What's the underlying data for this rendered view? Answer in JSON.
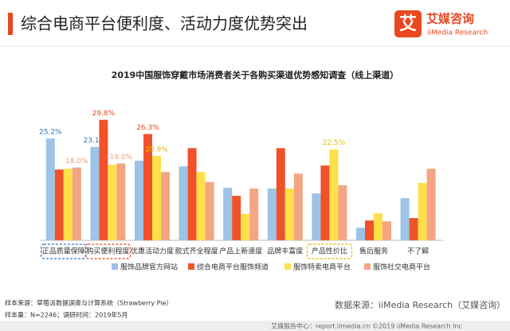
{
  "header": {
    "title": "综合电商平台便利度、活动力度优势突出",
    "logo_char": "艾",
    "logo_name": "艾媒咨询",
    "logo_sub": "iiMedia Research"
  },
  "chart_data": {
    "type": "bar",
    "title": "2019中国服饰穿戴市场消费者关于各购买渠道优势感知调查（线上渠道）",
    "categories": [
      "正品质量保障",
      "购买便利程度",
      "优惠活动力度",
      "款式齐全程度",
      "产品上新速度",
      "品牌丰富度",
      "产品性价比",
      "售后服务",
      "不了解"
    ],
    "series": [
      {
        "name": "服饰品牌官方网站",
        "color": "#9dc3e6",
        "values": [
          25.2,
          23.1,
          19.7,
          18.3,
          13.0,
          12.8,
          11.6,
          3.1,
          10.4
        ],
        "value_labels": [
          "25.2%",
          "23.1%",
          null,
          null,
          null,
          null,
          null,
          null,
          null
        ],
        "label_color": "#2e75b6"
      },
      {
        "name": "综合电商平台服饰频道",
        "color": "#f0532a",
        "values": [
          17.5,
          29.8,
          26.3,
          22.8,
          11.0,
          22.8,
          18.5,
          4.9,
          5.5
        ],
        "value_labels": [
          null,
          "29.8%",
          "26.3%",
          null,
          null,
          null,
          null,
          null,
          null
        ],
        "label_color": "#e8471f"
      },
      {
        "name": "服饰特卖电商平台",
        "color": "#ffe04b",
        "values": [
          17.7,
          18.7,
          20.9,
          16.9,
          6.5,
          12.8,
          22.5,
          6.7,
          14.2
        ],
        "value_labels": [
          null,
          null,
          "20.9%",
          null,
          null,
          null,
          "22.5%",
          null,
          null
        ],
        "label_color": "#e6b800"
      },
      {
        "name": "服饰社交电商平台",
        "color": "#f4a582",
        "values": [
          18.0,
          19.0,
          16.9,
          14.4,
          12.8,
          16.5,
          13.6,
          4.7,
          17.7
        ],
        "value_labels": [
          "18.0%",
          "19.0%",
          null,
          null,
          null,
          null,
          null,
          null,
          null
        ],
        "label_color": "#f0a07a"
      }
    ],
    "highlight": [
      {
        "index": 0,
        "color": "#2e75b6"
      },
      {
        "index": 1,
        "color": "#e8471f"
      },
      {
        "index": 6,
        "color": "#e6b800"
      }
    ],
    "legend": "bottom"
  },
  "footer": {
    "sample_source": "样本来源：草莓派数据调查与计算系统（Strawberry Pie）",
    "sample_size": "样本量：N=2246；调研时间：2019年5月",
    "data_source": "数据来源：iiMedia Research（艾媒咨询）",
    "copyright": "艾媒报告中心：report.iimedia.cn ©2019 iiMedia Research Inc"
  }
}
